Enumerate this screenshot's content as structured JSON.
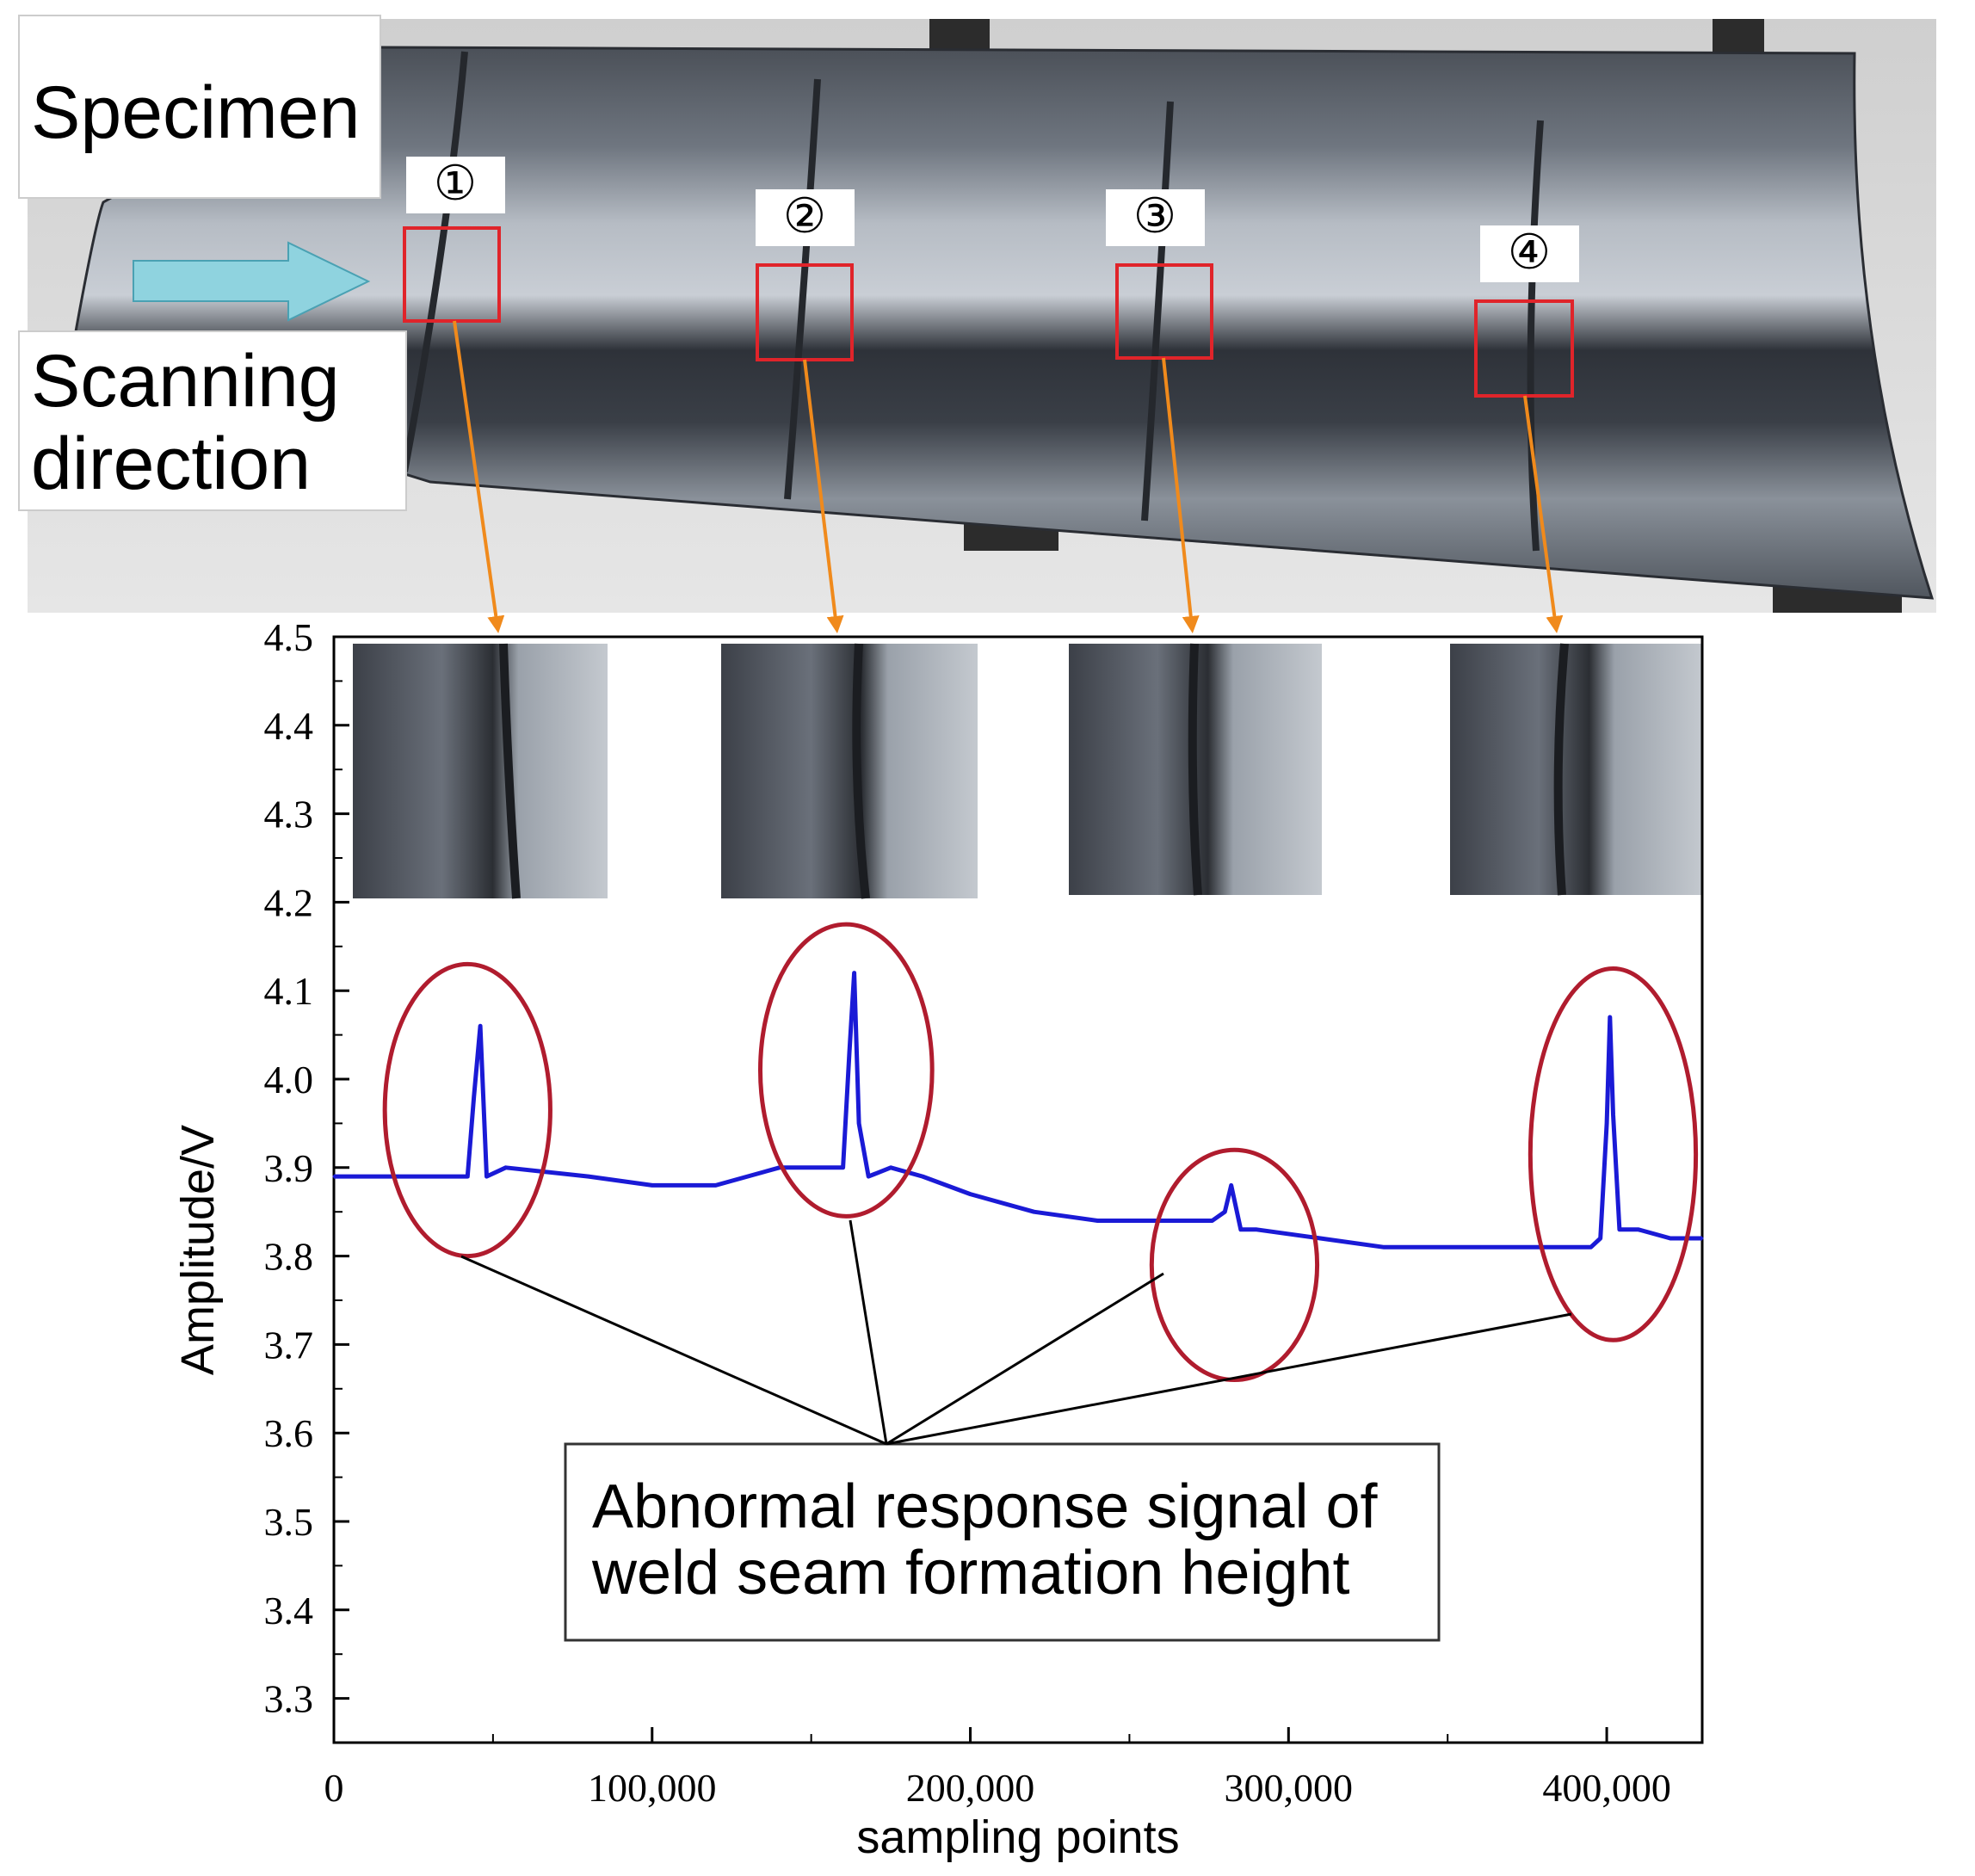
{
  "photo": {
    "specimen_label": "Specimen",
    "scanning_label_line1": "Scanning",
    "scanning_label_line2": "direction",
    "markers": [
      "①",
      "②",
      "③",
      "④"
    ],
    "colors": {
      "arrow_fill": "#8fd3df",
      "highlight_box": "#e0242a",
      "leader_arrow": "#f08a1c",
      "metal_dark": "#3a3f48",
      "metal_light": "#b9bfc8"
    }
  },
  "annotation": {
    "line1": "Abnormal response signal of",
    "line2": "weld seam formation height"
  },
  "chart_data": {
    "type": "line",
    "xlabel": "sampling points",
    "ylabel": "Amplitude/V",
    "xlim": [
      0,
      430000
    ],
    "ylim": [
      3.25,
      4.5
    ],
    "x_ticks": [
      0,
      100000,
      200000,
      300000,
      400000
    ],
    "x_tick_labels": [
      "0",
      "100,000",
      "200,000",
      "300,000",
      "400,000"
    ],
    "y_ticks": [
      3.3,
      3.4,
      3.5,
      3.6,
      3.7,
      3.8,
      3.9,
      4.0,
      4.1,
      4.2,
      4.3,
      4.4,
      4.5
    ],
    "y_tick_labels": [
      "3.3",
      "3.4",
      "3.5",
      "3.6",
      "3.7",
      "3.8",
      "3.9",
      "4.0",
      "4.1",
      "4.2",
      "4.3",
      "4.4",
      "4.5"
    ],
    "grid": false,
    "line_color": "#1a1ad6",
    "highlight_color": "#b01c2e",
    "series": [
      {
        "x": [
          0,
          20000,
          42000,
          44000,
          46000,
          48000,
          54000,
          80000,
          100000,
          120000,
          140000,
          152000,
          160000,
          162000,
          163500,
          165000,
          168000,
          175000,
          185000,
          200000,
          220000,
          240000,
          250000,
          268000,
          276000,
          280000,
          282000,
          285000,
          290000,
          310000,
          330000,
          360000,
          395000,
          398000,
          400000,
          401000,
          402000,
          404000,
          410000,
          420000,
          430000
        ],
        "y": [
          3.89,
          3.89,
          3.89,
          3.98,
          4.06,
          3.89,
          3.9,
          3.89,
          3.88,
          3.88,
          3.9,
          3.9,
          3.9,
          4.03,
          4.12,
          3.95,
          3.89,
          3.9,
          3.89,
          3.87,
          3.85,
          3.84,
          3.84,
          3.84,
          3.84,
          3.85,
          3.88,
          3.83,
          3.83,
          3.82,
          3.81,
          3.81,
          3.81,
          3.82,
          3.95,
          4.07,
          3.96,
          3.83,
          3.83,
          3.82,
          3.82
        ]
      }
    ],
    "highlights": [
      {
        "cx": 42000,
        "cy": 3.965,
        "rx": 26000,
        "ry": 0.165
      },
      {
        "cx": 161000,
        "cy": 4.01,
        "rx": 27000,
        "ry": 0.165
      },
      {
        "cx": 283000,
        "cy": 3.79,
        "rx": 26000,
        "ry": 0.13
      },
      {
        "cx": 402000,
        "cy": 3.915,
        "rx": 26000,
        "ry": 0.21
      }
    ]
  }
}
